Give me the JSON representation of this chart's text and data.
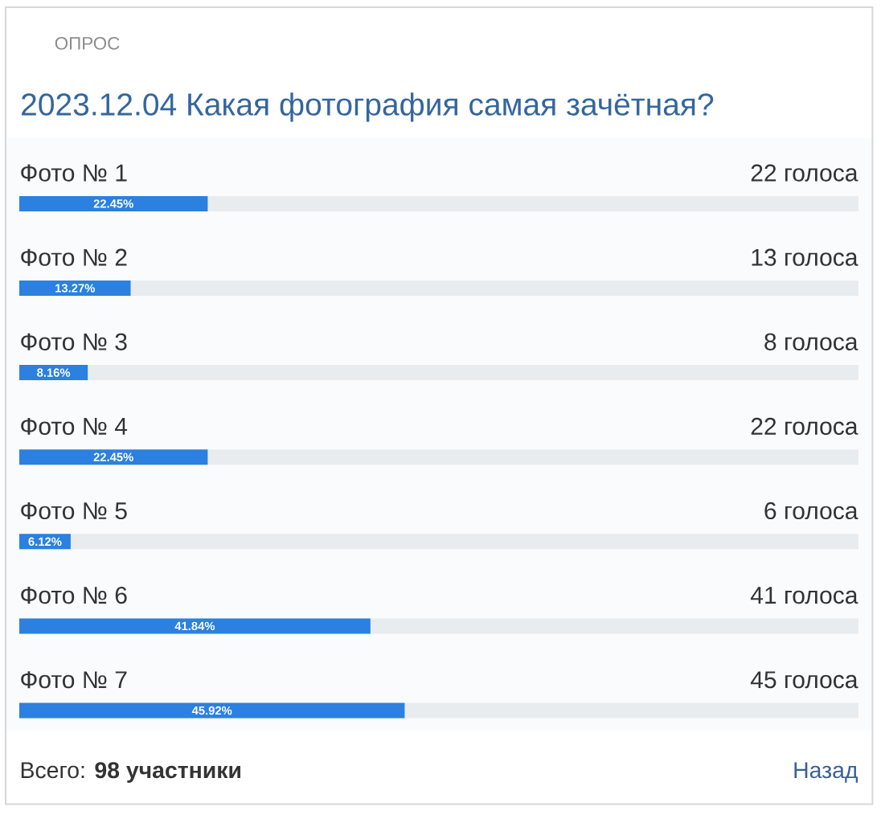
{
  "chart_data": {
    "type": "bar",
    "orientation": "horizontal",
    "title": "2023.12.04 Какая фотография самая зачётная?",
    "categories": [
      "Фото № 1",
      "Фото № 2",
      "Фото № 3",
      "Фото № 4",
      "Фото № 5",
      "Фото № 6",
      "Фото № 7"
    ],
    "values": [
      22.45,
      13.27,
      8.16,
      22.45,
      6.12,
      41.84,
      45.92
    ],
    "value_labels": [
      "22.45%",
      "13.27%",
      "8.16%",
      "22.45%",
      "6.12%",
      "41.84%",
      "45.92%"
    ],
    "color": "#2b80e0",
    "xlim": [
      0,
      100
    ],
    "annotations": [
      "ОПРОС",
      "22 голоса",
      "13 голоса",
      "8 голоса",
      "22 голоса",
      "6 голоса",
      "41 голоса",
      "45 голоса",
      "Всего: **98 участники**",
      "Назад"
    ]
  }
}
